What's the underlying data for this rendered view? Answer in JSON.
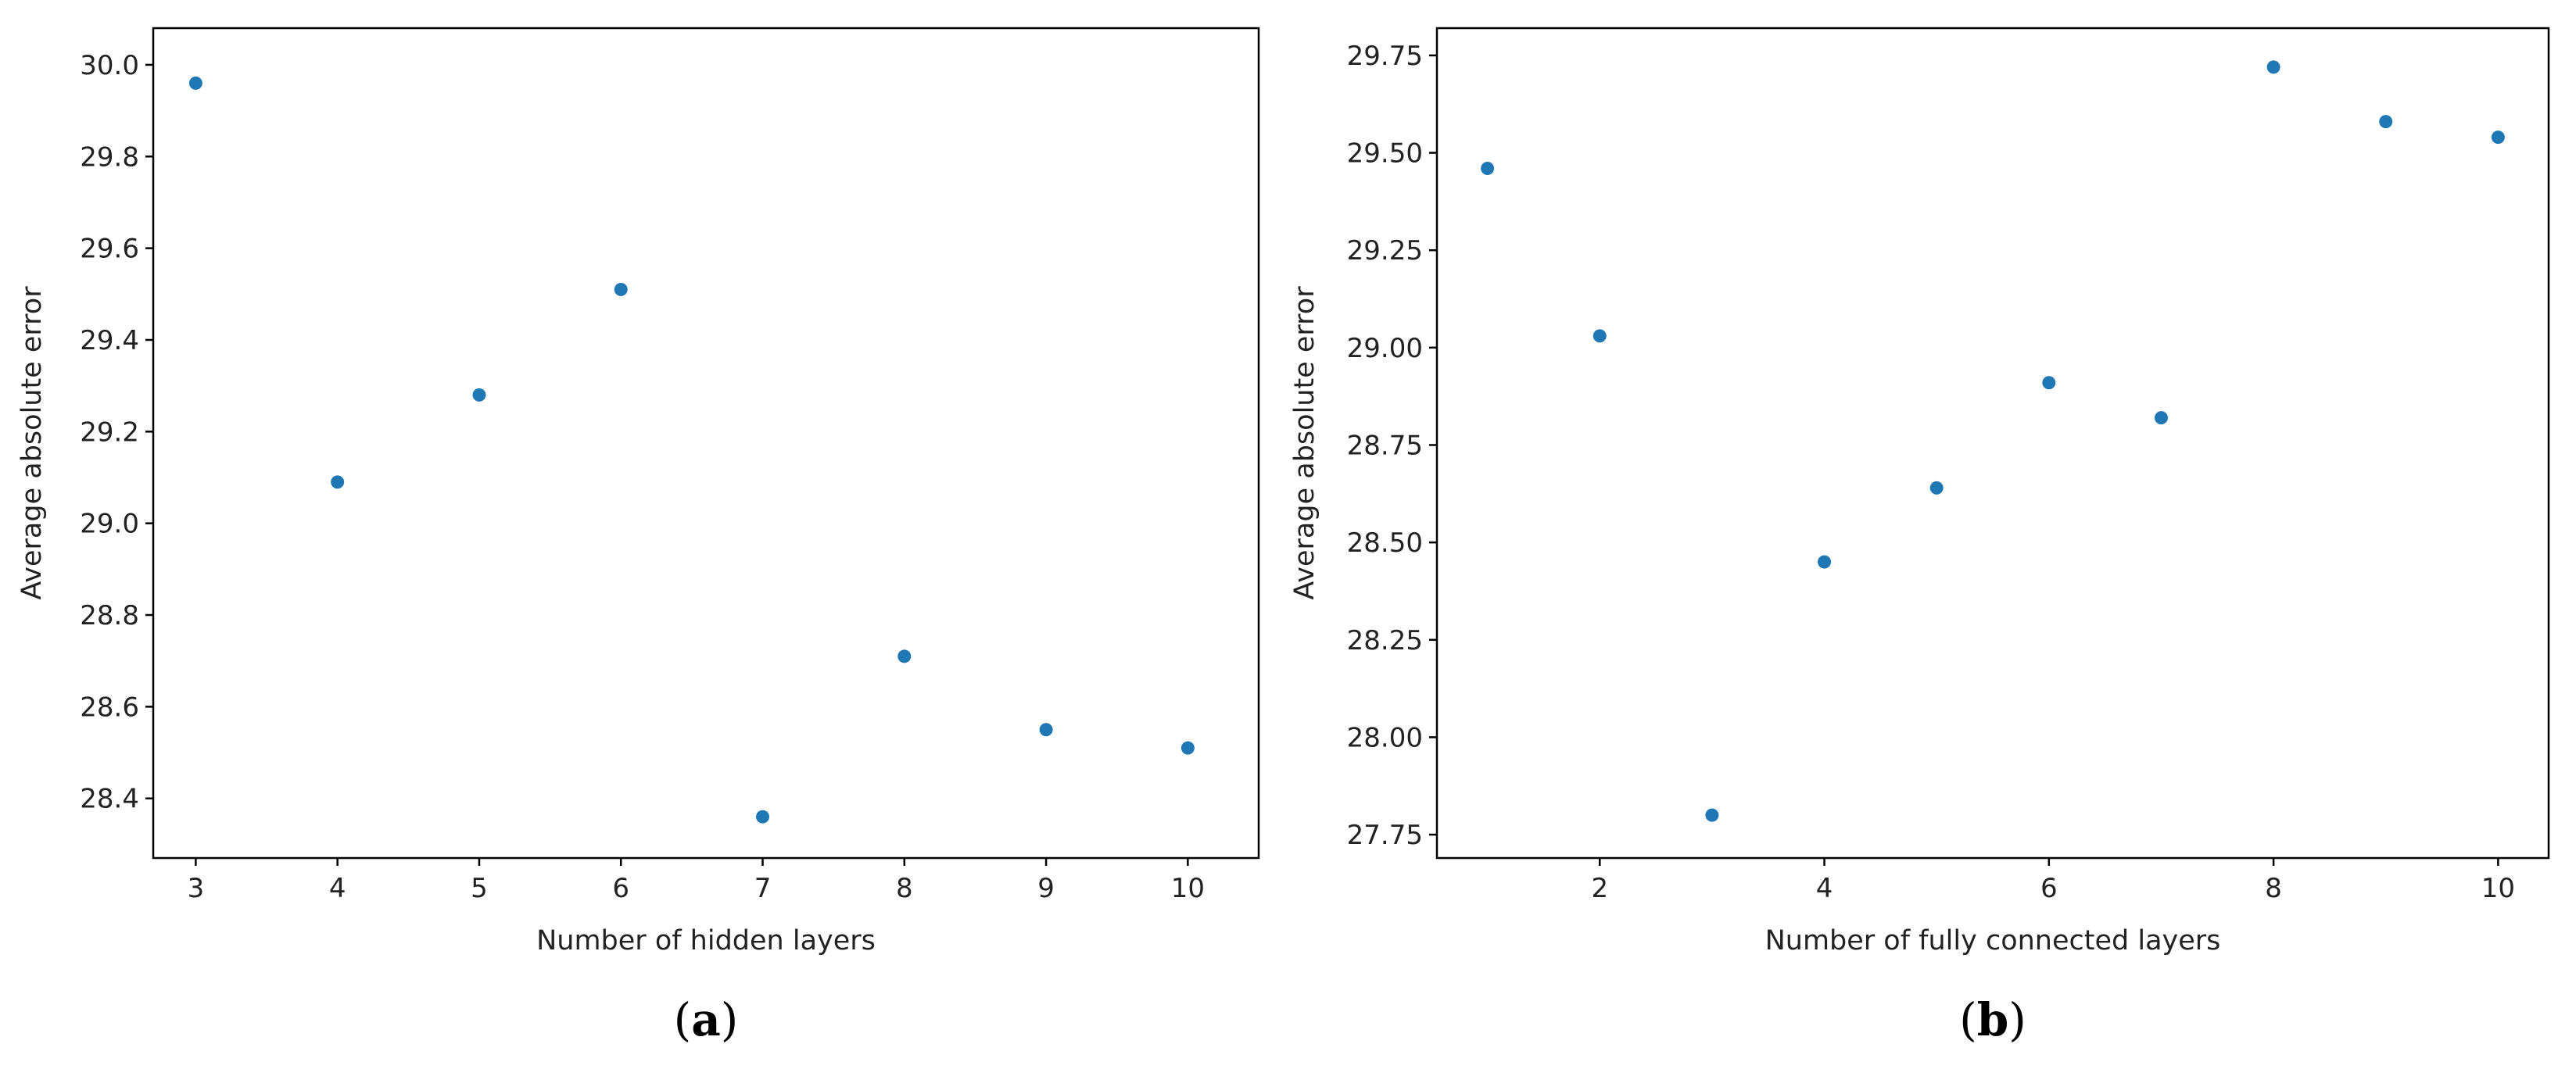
{
  "chart_data": [
    {
      "type": "scatter",
      "panel_label": "a",
      "title": "",
      "xlabel": "Number of hidden layers",
      "ylabel": "Average absolute error",
      "xlim": [
        2.7,
        10.5
      ],
      "ylim": [
        28.27,
        30.08
      ],
      "xticks": [
        3,
        4,
        5,
        6,
        7,
        8,
        9,
        10
      ],
      "xtick_labels": [
        "3",
        "4",
        "5",
        "6",
        "7",
        "8",
        "9",
        "10"
      ],
      "yticks": [
        28.4,
        28.6,
        28.8,
        29.0,
        29.2,
        29.4,
        29.6,
        29.8,
        30.0
      ],
      "ytick_labels": [
        "28.4",
        "28.6",
        "28.8",
        "29.0",
        "29.2",
        "29.4",
        "29.6",
        "29.8",
        "30.0"
      ],
      "grid": false,
      "marker_color": "#1f77b4",
      "x": [
        3,
        4,
        5,
        6,
        7,
        8,
        9,
        10
      ],
      "y": [
        29.96,
        29.09,
        29.28,
        29.51,
        28.36,
        28.71,
        28.55,
        28.51
      ]
    },
    {
      "type": "scatter",
      "panel_label": "b",
      "title": "",
      "xlabel": "Number of fully connected layers",
      "ylabel": "Average absolute error",
      "xlim": [
        0.55,
        10.45
      ],
      "ylim": [
        27.69,
        29.82
      ],
      "xticks": [
        2,
        4,
        6,
        8,
        10
      ],
      "xtick_labels": [
        "2",
        "4",
        "6",
        "8",
        "10"
      ],
      "yticks": [
        27.75,
        28.0,
        28.25,
        28.5,
        28.75,
        29.0,
        29.25,
        29.5,
        29.75
      ],
      "ytick_labels": [
        "27.75",
        "28.00",
        "28.25",
        "28.50",
        "28.75",
        "29.00",
        "29.25",
        "29.50",
        "29.75"
      ],
      "grid": false,
      "marker_color": "#1f77b4",
      "x": [
        1,
        2,
        3,
        4,
        5,
        6,
        7,
        8,
        9,
        10
      ],
      "y": [
        29.46,
        29.03,
        27.8,
        28.45,
        28.64,
        28.91,
        28.82,
        29.72,
        29.58,
        29.54
      ]
    }
  ]
}
